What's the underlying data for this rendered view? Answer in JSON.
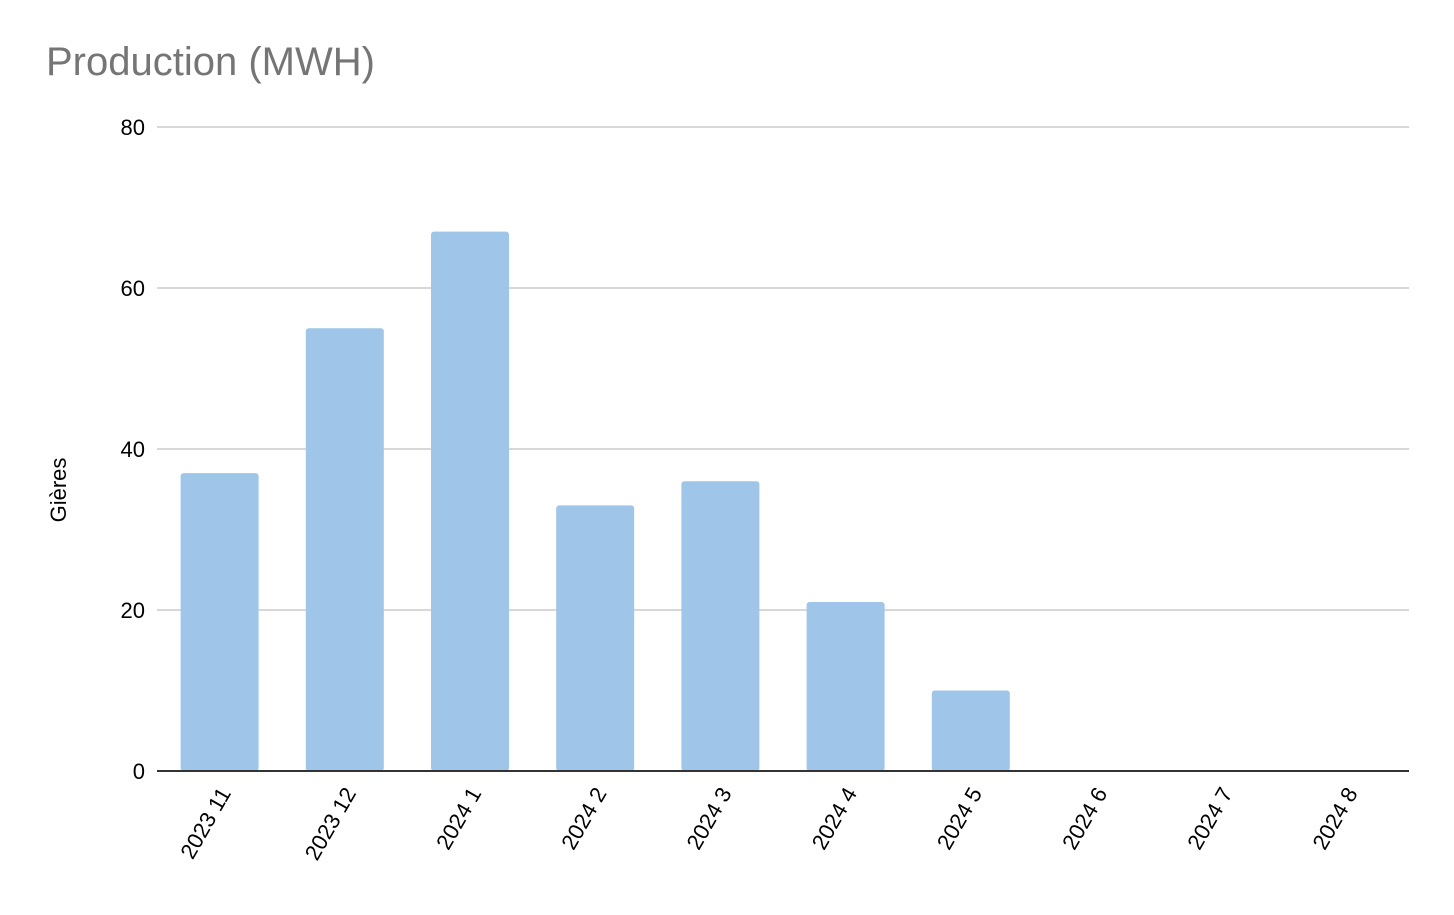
{
  "chart_data": {
    "type": "bar",
    "title": "Production (MWH)",
    "xlabel": "",
    "ylabel": "Gières",
    "categories": [
      "2023 11",
      "2023 12",
      "2024 1",
      "2024 2",
      "2024 3",
      "2024 4",
      "2024 5",
      "2024 6",
      "2024 7",
      "2024 8"
    ],
    "series": [
      {
        "values": [
          37,
          55,
          67,
          33,
          36,
          21,
          10,
          0,
          0,
          0
        ]
      }
    ],
    "ylim": [
      0,
      80
    ],
    "yticks": [
      0,
      20,
      40,
      60,
      80
    ],
    "grid": true,
    "legend": "none",
    "colors": {
      "bar": "#9fc5e8",
      "grid": "#cccccc",
      "axis": "#333333",
      "title": "#757575",
      "text": "#000000"
    }
  }
}
